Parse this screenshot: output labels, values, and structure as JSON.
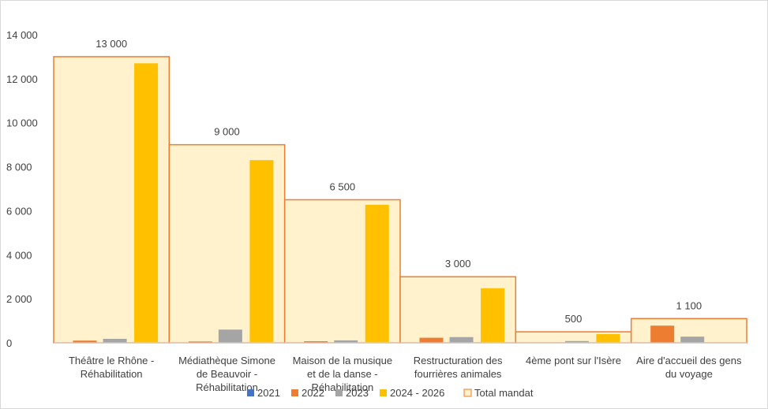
{
  "chart_data": {
    "type": "bar",
    "categories": [
      [
        "Théâtre le Rhône -",
        "Réhabilitation"
      ],
      [
        "Médiathèque Simone",
        "de Beauvoir -",
        "Réhabilitation"
      ],
      [
        "Maison de la musique",
        "et de la danse -",
        "Réhabilitation"
      ],
      [
        "Restructuration des",
        "fourrières animales"
      ],
      [
        "4ème pont sur l'Isère"
      ],
      [
        "Aire d'accueil des gens",
        "du voyage"
      ]
    ],
    "series": [
      {
        "name": "2021",
        "color": "#4472C4",
        "values": [
          0,
          0,
          0,
          0,
          0,
          0
        ]
      },
      {
        "name": "2022",
        "color": "#ED7D31",
        "values": [
          100,
          60,
          70,
          230,
          0,
          780
        ]
      },
      {
        "name": "2023",
        "color": "#A5A5A5",
        "values": [
          180,
          600,
          110,
          260,
          80,
          280
        ]
      },
      {
        "name": "2024 - 2026",
        "color": "#FFC000",
        "values": [
          12700,
          8300,
          6270,
          2480,
          400,
          0
        ]
      }
    ],
    "total": {
      "name": "Total mandat",
      "fill": "#FFF2CC",
      "stroke": "#ED7D31",
      "values": [
        13000,
        9000,
        6500,
        3000,
        500,
        1100
      ],
      "labels": [
        "13 000",
        "9 000",
        "6 500",
        "3 000",
        "500",
        "1 100"
      ]
    },
    "yticks": [
      {
        "v": 0,
        "label": "0"
      },
      {
        "v": 2000,
        "label": "2 000"
      },
      {
        "v": 4000,
        "label": "4 000"
      },
      {
        "v": 6000,
        "label": "6 000"
      },
      {
        "v": 8000,
        "label": "8 000"
      },
      {
        "v": 10000,
        "label": "10 000"
      },
      {
        "v": 12000,
        "label": "12 000"
      },
      {
        "v": 14000,
        "label": "14 000"
      }
    ],
    "ylim": [
      0,
      14000
    ],
    "grid": false,
    "legend": "bottom"
  }
}
